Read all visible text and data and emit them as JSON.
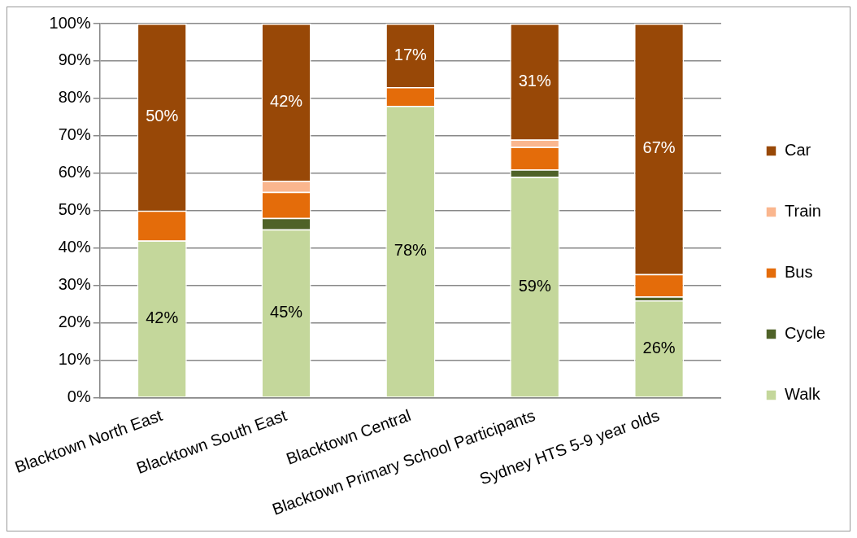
{
  "chart_data": {
    "type": "bar",
    "stacked": true,
    "categories": [
      "Blacktown North East",
      "Blacktown South East",
      "Blacktown Central",
      "Blacktown Primary School Participants",
      "Sydney HTS 5-9 year olds"
    ],
    "series": [
      {
        "name": "Walk",
        "color": "#c4d79b",
        "values": [
          42,
          45,
          78,
          59,
          26
        ],
        "value_labels": [
          "42%",
          "45%",
          "78%",
          "59%",
          "26%"
        ]
      },
      {
        "name": "Cycle",
        "color": "#4f6228",
        "values": [
          0,
          3,
          0,
          2,
          1
        ]
      },
      {
        "name": "Bus",
        "color": "#e46c0a",
        "values": [
          8,
          7,
          5,
          6,
          6
        ]
      },
      {
        "name": "Train",
        "color": "#fab68e",
        "values": [
          0,
          3,
          0,
          2,
          0
        ]
      },
      {
        "name": "Car",
        "color": "#984807",
        "values": [
          50,
          42,
          17,
          31,
          67
        ],
        "value_labels": [
          "50%",
          "42%",
          "17%",
          "31%",
          "67%"
        ]
      }
    ],
    "ylim": [
      0,
      100
    ],
    "yticks": [
      {
        "value": 0,
        "label": "0%"
      },
      {
        "value": 10,
        "label": "10%"
      },
      {
        "value": 20,
        "label": "20%"
      },
      {
        "value": 30,
        "label": "30%"
      },
      {
        "value": 40,
        "label": "40%"
      },
      {
        "value": 50,
        "label": "50%"
      },
      {
        "value": 60,
        "label": "60%"
      },
      {
        "value": 70,
        "label": "70%"
      },
      {
        "value": 80,
        "label": "80%"
      },
      {
        "value": 90,
        "label": "90%"
      },
      {
        "value": 100,
        "label": "100%"
      }
    ],
    "grid": "y",
    "legend": "right"
  }
}
